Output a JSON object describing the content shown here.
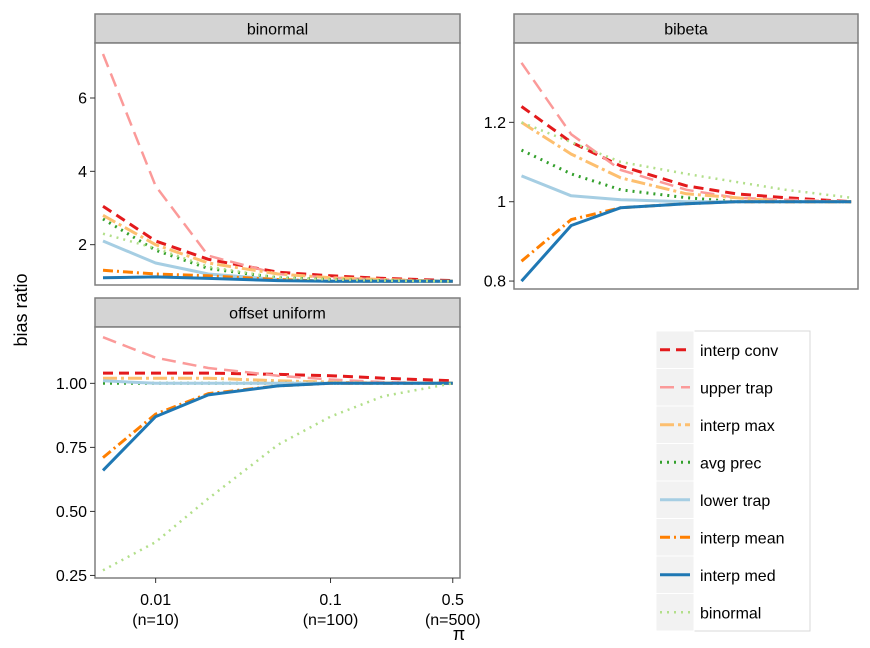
{
  "chart_data": {
    "type": "line",
    "ylabel": "bias ratio",
    "xlabel": "π",
    "x_scale": "log",
    "x_ticks": [
      {
        "value": 0.01,
        "label": "0.01",
        "sublabel": "(n=10)"
      },
      {
        "value": 0.1,
        "label": "0.1",
        "sublabel": "(n=100)"
      },
      {
        "value": 0.5,
        "label": "0.5",
        "sublabel": "(n=500)"
      }
    ],
    "x": [
      0.005,
      0.01,
      0.02,
      0.05,
      0.1,
      0.2,
      0.5
    ],
    "legend_position": "right",
    "legend": [
      {
        "key": "interp_conv",
        "label": "interp conv",
        "color": "#e31a1c",
        "dash": "dashed"
      },
      {
        "key": "upper_trap",
        "label": "upper trap",
        "color": "#fb9a99",
        "dash": "longdash"
      },
      {
        "key": "interp_max",
        "label": "interp max",
        "color": "#fdbf6f",
        "dash": "dashdot-long"
      },
      {
        "key": "avg_prec",
        "label": "avg prec",
        "color": "#33a02c",
        "dash": "dotted"
      },
      {
        "key": "lower_trap",
        "label": "lower trap",
        "color": "#a6cee3",
        "dash": "solid"
      },
      {
        "key": "interp_mean",
        "label": "interp mean",
        "color": "#ff7f00",
        "dash": "dashdot"
      },
      {
        "key": "interp_med",
        "label": "interp med",
        "color": "#1f78b4",
        "dash": "solid"
      },
      {
        "key": "binormal",
        "label": "binormal",
        "color": "#b2df8a",
        "dash": "dotted"
      }
    ],
    "panels": [
      {
        "title": "binormal",
        "ylim": [
          0.9,
          7.5
        ],
        "yticks": [
          2,
          4,
          6
        ],
        "series": {
          "upper_trap": [
            7.2,
            3.6,
            1.7,
            1.2,
            1.1,
            1.05,
            1.0
          ],
          "binormal": [
            2.3,
            1.9,
            1.4,
            1.1,
            1.05,
            1.02,
            1.0
          ],
          "interp_max": [
            2.8,
            2.0,
            1.5,
            1.2,
            1.1,
            1.05,
            1.0
          ],
          "avg_prec": [
            2.7,
            1.85,
            1.35,
            1.1,
            1.05,
            1.02,
            1.0
          ],
          "interp_conv": [
            3.05,
            2.1,
            1.6,
            1.25,
            1.15,
            1.08,
            1.02
          ],
          "lower_trap": [
            2.1,
            1.5,
            1.2,
            1.05,
            1.0,
            1.0,
            1.0
          ],
          "interp_mean": [
            1.3,
            1.2,
            1.15,
            1.05,
            1.0,
            1.0,
            1.0
          ],
          "interp_med": [
            1.1,
            1.12,
            1.08,
            1.02,
            1.0,
            1.0,
            1.0
          ]
        }
      },
      {
        "title": "bibeta",
        "ylim": [
          0.78,
          1.4
        ],
        "yticks": [
          0.8,
          1.0,
          1.2
        ],
        "series": {
          "upper_trap": [
            1.35,
            1.17,
            1.08,
            1.03,
            1.01,
            1.005,
            1.0
          ],
          "binormal": [
            1.2,
            1.15,
            1.1,
            1.07,
            1.05,
            1.03,
            1.01
          ],
          "interp_max": [
            1.2,
            1.12,
            1.06,
            1.02,
            1.01,
            1.0,
            1.0
          ],
          "avg_prec": [
            1.13,
            1.07,
            1.03,
            1.01,
            1.0,
            1.0,
            1.0
          ],
          "interp_conv": [
            1.24,
            1.15,
            1.09,
            1.04,
            1.02,
            1.01,
            1.0
          ],
          "lower_trap": [
            1.065,
            1.015,
            1.005,
            1.0,
            1.0,
            1.0,
            1.0
          ],
          "interp_mean": [
            0.85,
            0.955,
            0.985,
            0.995,
            1.0,
            1.0,
            1.0
          ],
          "interp_med": [
            0.8,
            0.94,
            0.985,
            0.995,
            1.0,
            1.0,
            1.0
          ]
        }
      },
      {
        "title": "offset uniform",
        "ylim": [
          0.24,
          1.22
        ],
        "yticks": [
          0.25,
          0.5,
          0.75,
          1.0
        ],
        "ytick_labels": [
          "0.25",
          "0.50",
          "0.75",
          "1.00"
        ],
        "series": {
          "upper_trap": [
            1.18,
            1.1,
            1.06,
            1.03,
            1.015,
            1.005,
            1.0
          ],
          "binormal": [
            0.27,
            0.38,
            0.55,
            0.76,
            0.87,
            0.95,
            1.0
          ],
          "interp_max": [
            1.02,
            1.02,
            1.02,
            1.01,
            1.005,
            1.0,
            1.0
          ],
          "avg_prec": [
            1.0,
            1.0,
            1.0,
            1.0,
            1.0,
            1.0,
            1.0
          ],
          "interp_conv": [
            1.04,
            1.04,
            1.04,
            1.035,
            1.03,
            1.02,
            1.01
          ],
          "lower_trap": [
            1.01,
            1.0,
            1.0,
            1.0,
            1.0,
            1.0,
            1.0
          ],
          "interp_mean": [
            0.71,
            0.88,
            0.96,
            0.99,
            1.0,
            1.0,
            1.0
          ],
          "interp_med": [
            0.66,
            0.87,
            0.955,
            0.99,
            1.0,
            1.0,
            1.0
          ]
        }
      }
    ]
  }
}
